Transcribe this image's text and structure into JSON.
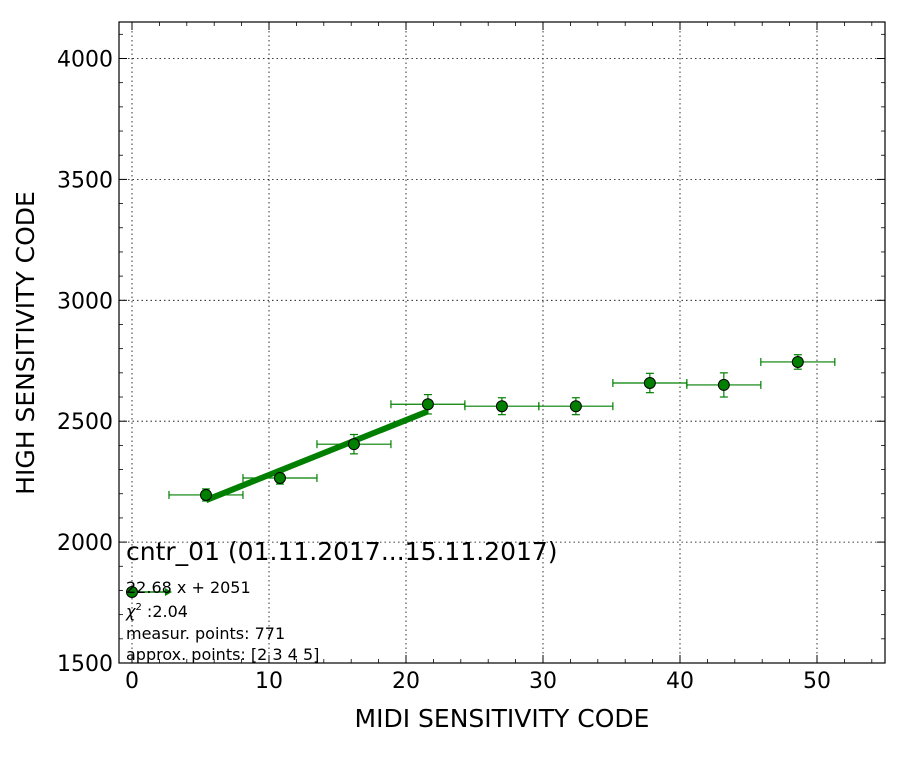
{
  "chart_data": {
    "type": "scatter",
    "xlabel": "MIDI SENSITIVITY CODE",
    "ylabel": "HIGH SENSITIVITY CODE",
    "xlim": [
      -1,
      55
    ],
    "ylim": [
      1500,
      4150
    ],
    "xticks": [
      0,
      10,
      20,
      30,
      40,
      50
    ],
    "yticks": [
      1500,
      2000,
      2500,
      3000,
      3500,
      4000
    ],
    "grid": true,
    "color": "#007f00",
    "points": [
      {
        "x": 5.4,
        "y": 2195,
        "xerr": 2.7,
        "yerr": 25
      },
      {
        "x": 10.8,
        "y": 2265,
        "xerr": 2.7,
        "yerr": 25
      },
      {
        "x": 16.2,
        "y": 2405,
        "xerr": 2.7,
        "yerr": 40
      },
      {
        "x": 21.6,
        "y": 2570,
        "xerr": 2.7,
        "yerr": 40
      },
      {
        "x": 27.0,
        "y": 2562,
        "xerr": 2.7,
        "yerr": 35
      },
      {
        "x": 32.4,
        "y": 2562,
        "xerr": 2.7,
        "yerr": 35
      },
      {
        "x": 37.8,
        "y": 2658,
        "xerr": 2.7,
        "yerr": 40
      },
      {
        "x": 43.2,
        "y": 2650,
        "xerr": 2.7,
        "yerr": 50
      },
      {
        "x": 48.6,
        "y": 2745,
        "xerr": 2.7,
        "yerr": 30
      }
    ],
    "fit_line": {
      "x": [
        5.4,
        21.6
      ],
      "slope": 22.68,
      "intercept": 2051
    },
    "annotation": {
      "title": "cntr_01 (01.11.2017...15.11.2017)",
      "equation": "22.68 x + 2051",
      "chi2_symbol": "χ",
      "chi2_exp": "2",
      "chi2_value": " :2.04",
      "measur_points": "measur. points: 771",
      "approx_points": "approx. points: [2 3 4 5]"
    }
  }
}
